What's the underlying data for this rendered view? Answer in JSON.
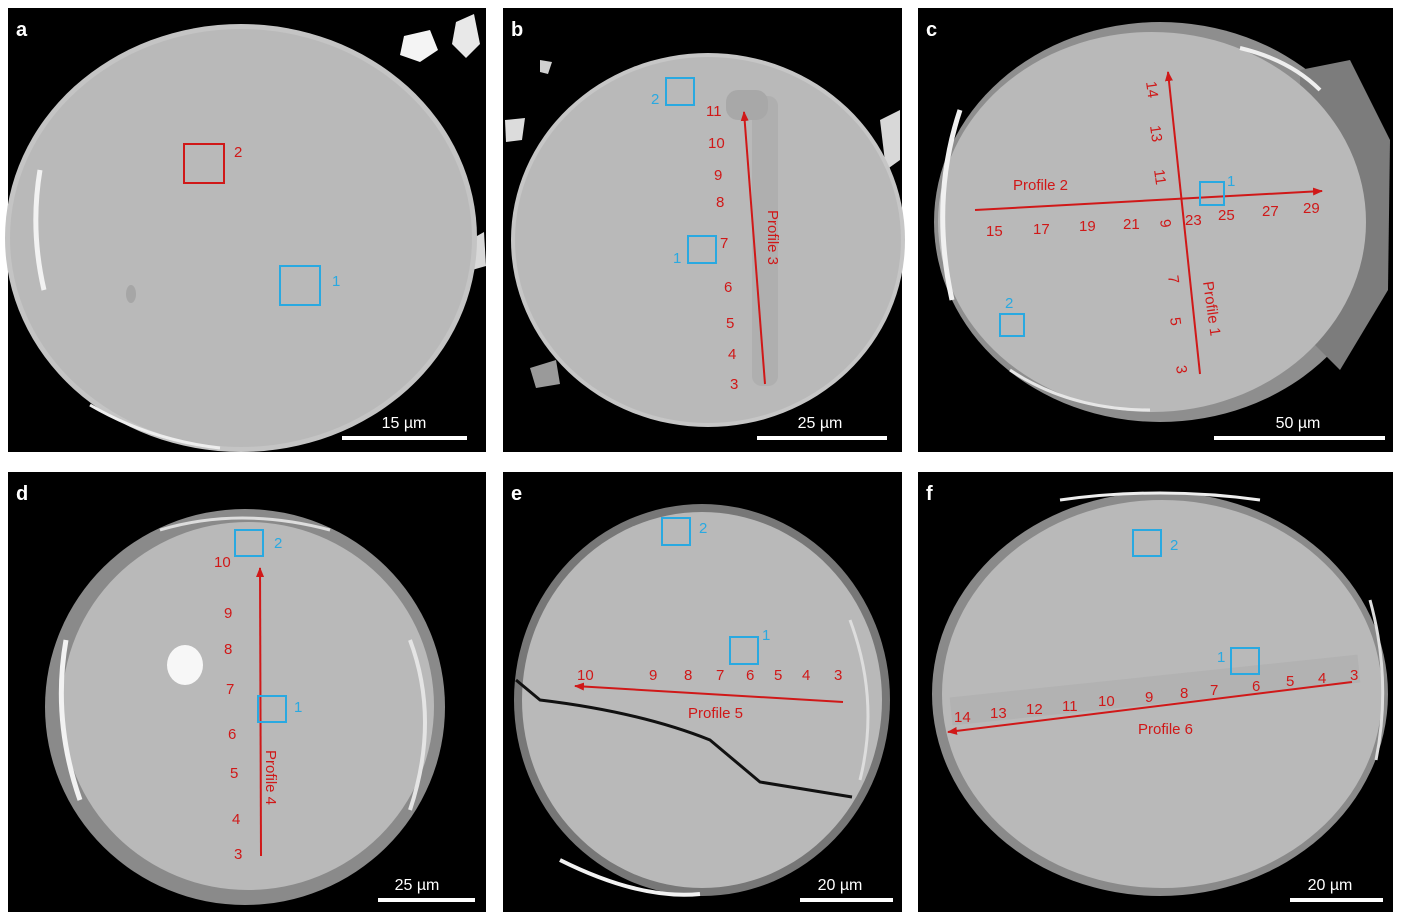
{
  "figure": {
    "panels": [
      {
        "id": "a",
        "label": "a",
        "scale_bar": "15 µm",
        "profiles": [],
        "boxes": [
          {
            "label": "2",
            "color": "#d01818"
          },
          {
            "label": "1",
            "color": "#29a9e1"
          }
        ],
        "points": []
      },
      {
        "id": "b",
        "label": "b",
        "scale_bar": "25 µm",
        "profiles": [
          {
            "label": "Profile 3"
          }
        ],
        "boxes": [
          {
            "label": "2",
            "color": "#29a9e1"
          },
          {
            "label": "1",
            "color": "#29a9e1"
          }
        ],
        "points": [
          "11",
          "10",
          "9",
          "8",
          "7",
          "6",
          "5",
          "4",
          "3"
        ]
      },
      {
        "id": "c",
        "label": "c",
        "scale_bar": "50 µm",
        "profiles": [
          {
            "label": "Profile 2"
          },
          {
            "label": "Profile 1"
          }
        ],
        "boxes": [
          {
            "label": "1",
            "color": "#29a9e1"
          },
          {
            "label": "2",
            "color": "#29a9e1"
          }
        ],
        "points": [
          "15",
          "17",
          "19",
          "21",
          "23",
          "25",
          "27",
          "29",
          "14",
          "13",
          "11",
          "9",
          "7",
          "5",
          "3"
        ]
      },
      {
        "id": "d",
        "label": "d",
        "scale_bar": "25 µm",
        "profiles": [
          {
            "label": "Profile 4"
          }
        ],
        "boxes": [
          {
            "label": "2",
            "color": "#29a9e1"
          },
          {
            "label": "1",
            "color": "#29a9e1"
          }
        ],
        "points": [
          "10",
          "9",
          "8",
          "7",
          "6",
          "5",
          "4",
          "3"
        ]
      },
      {
        "id": "e",
        "label": "e",
        "scale_bar": "20 µm",
        "profiles": [
          {
            "label": "Profile 5"
          }
        ],
        "boxes": [
          {
            "label": "2",
            "color": "#29a9e1"
          },
          {
            "label": "1",
            "color": "#29a9e1"
          }
        ],
        "points": [
          "10",
          "9",
          "8",
          "7",
          "6",
          "5",
          "4",
          "3"
        ]
      },
      {
        "id": "f",
        "label": "f",
        "scale_bar": "20 µm",
        "profiles": [
          {
            "label": "Profile 6"
          }
        ],
        "boxes": [
          {
            "label": "2",
            "color": "#29a9e1"
          },
          {
            "label": "1",
            "color": "#29a9e1"
          }
        ],
        "points": [
          "14",
          "13",
          "12",
          "11",
          "10",
          "9",
          "8",
          "7",
          "6",
          "5",
          "4",
          "3"
        ]
      }
    ]
  }
}
